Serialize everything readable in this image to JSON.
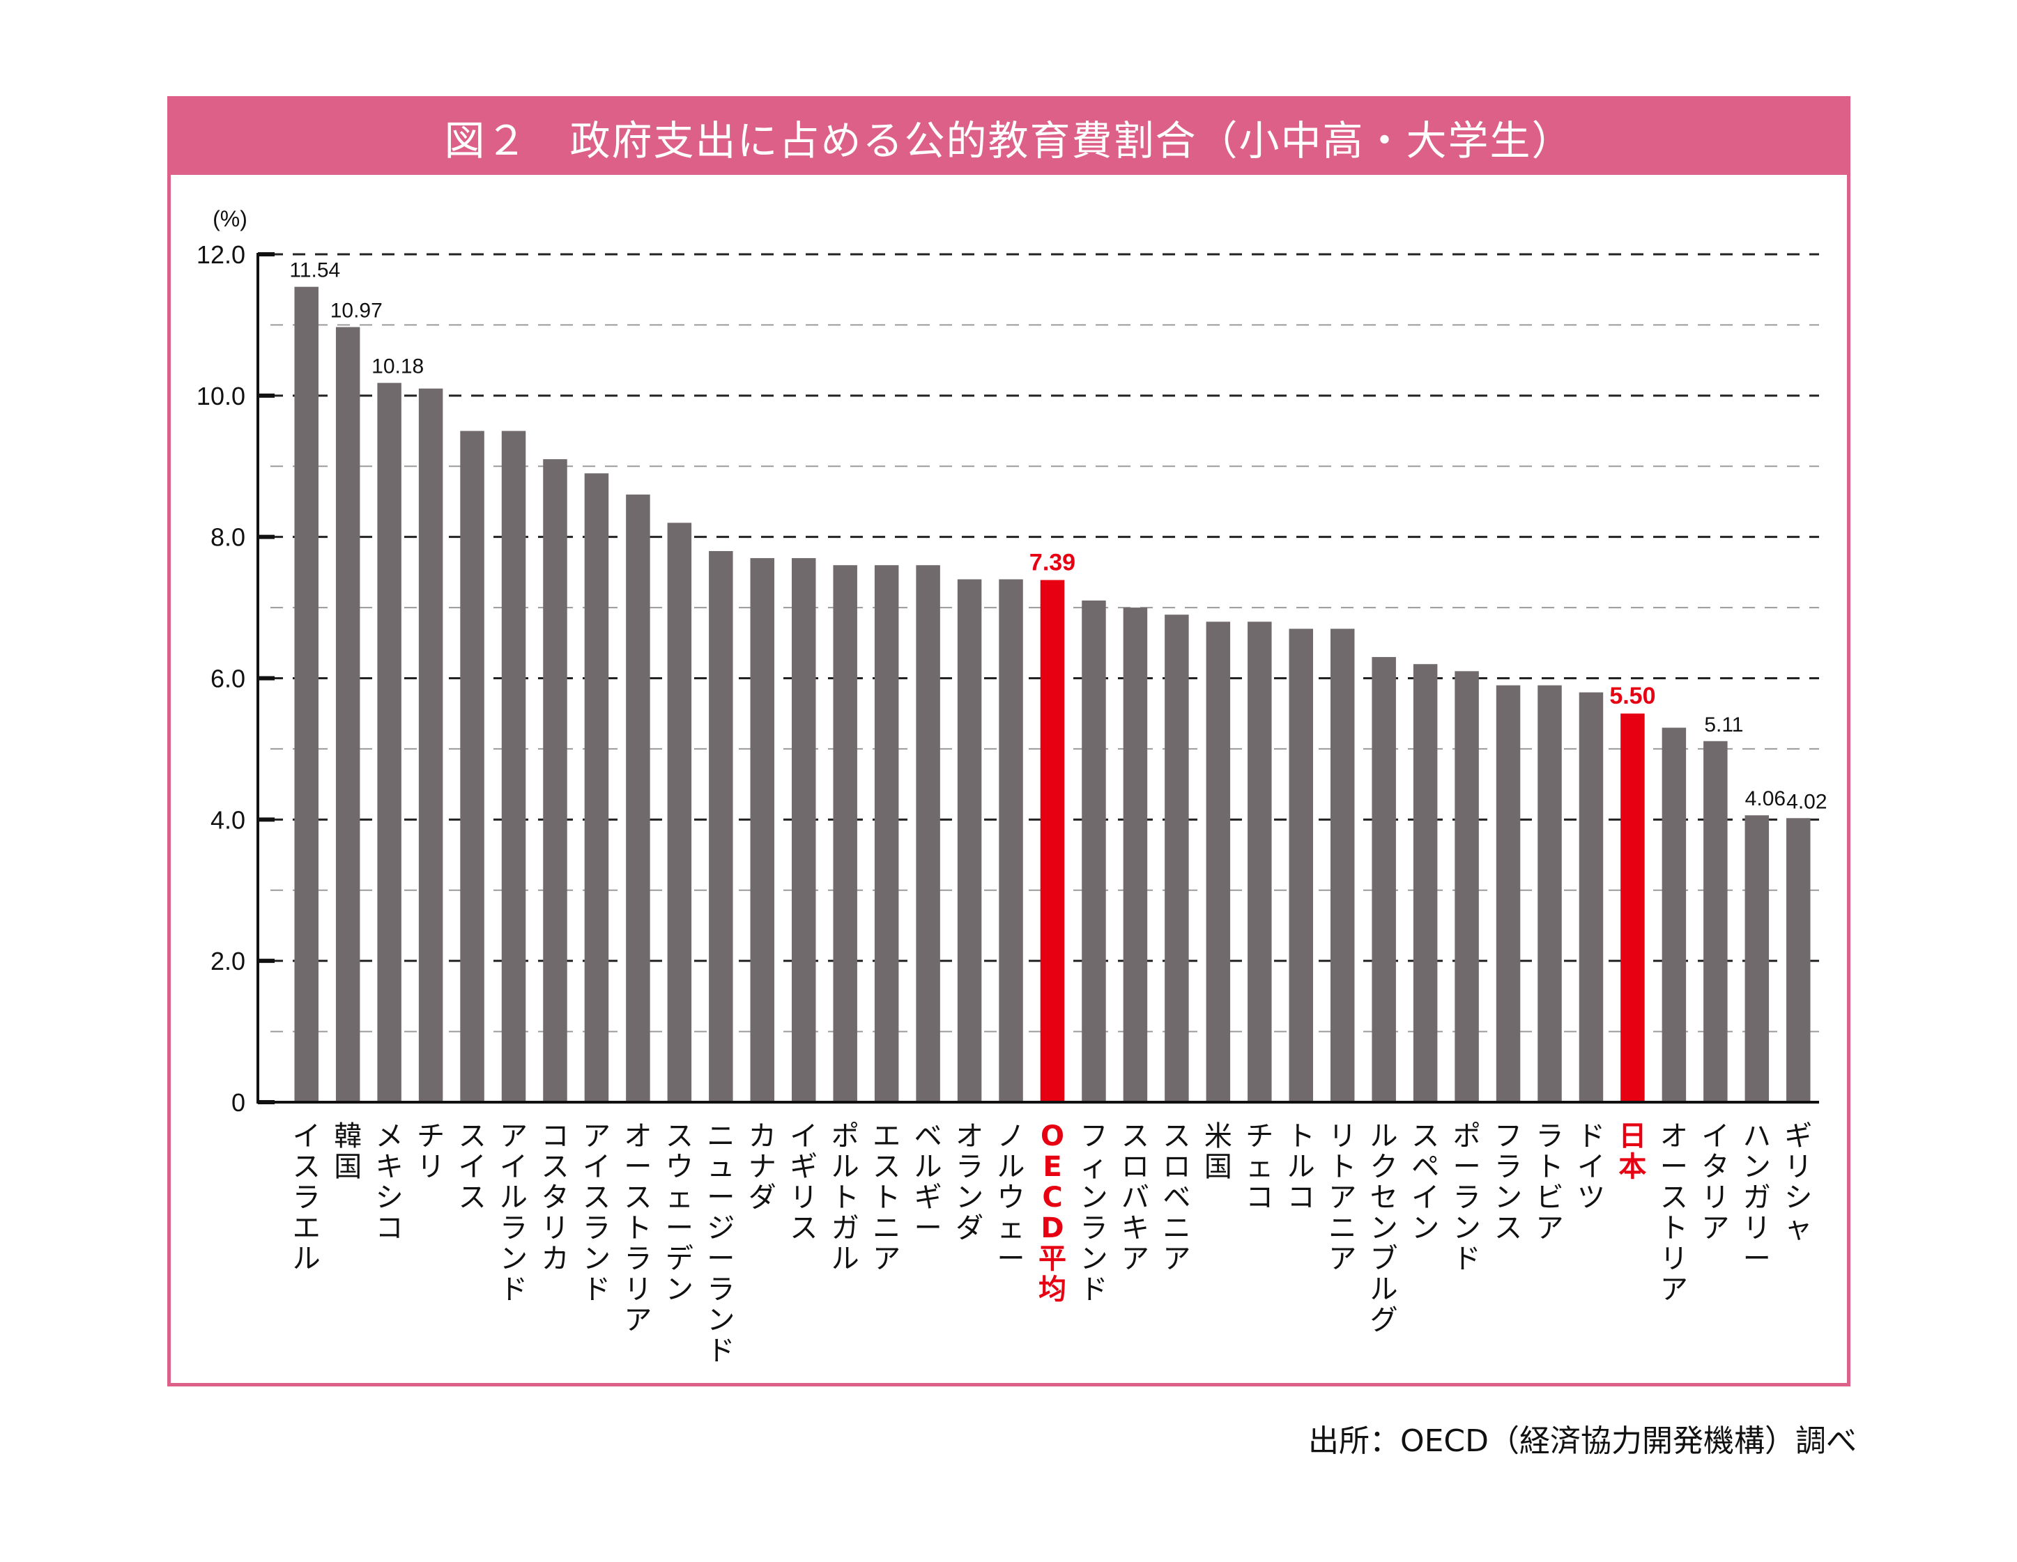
{
  "title": "図２　政府支出に占める公的教育費割合（小中高・大学生）",
  "source": "出所：OECD（経済協力開発機構）調べ",
  "colors": {
    "bar": "#716a6c",
    "highlight": "#e60012",
    "frame": "#dc6088",
    "text": "#111111"
  },
  "chart_data": {
    "type": "bar",
    "title": "図２　政府支出に占める公的教育費割合（小中高・大学生）",
    "ylabel": "(%)",
    "xlabel": "",
    "ylim": [
      0,
      12
    ],
    "yticks": [
      0,
      2,
      4,
      6,
      8,
      10,
      12
    ],
    "ytick_labels": [
      "0",
      "2.0",
      "4.0",
      "6.0",
      "8.0",
      "10.0",
      "12.0"
    ],
    "grid": true,
    "legend": "none",
    "categories": [
      "イスラエル",
      "韓国",
      "メキシコ",
      "チリ",
      "スイス",
      "アイルランド",
      "コスタリカ",
      "アイスランド",
      "オーストラリア",
      "スウェーデン",
      "ニュージーランド",
      "カナダ",
      "イギリス",
      "ポルトガル",
      "エストニア",
      "ベルギー",
      "オランダ",
      "ノルウェー",
      "OECD平均",
      "フィンランド",
      "スロバキア",
      "スロベニア",
      "米国",
      "チェコ",
      "トルコ",
      "リトアニア",
      "ルクセンブルグ",
      "スペイン",
      "ポーランド",
      "フランス",
      "ラトビア",
      "ドイツ",
      "日本",
      "オーストリア",
      "イタリア",
      "ハンガリー",
      "ギリシャ"
    ],
    "values": [
      11.54,
      10.97,
      10.18,
      10.1,
      9.5,
      9.5,
      9.1,
      8.9,
      8.6,
      8.2,
      7.8,
      7.7,
      7.7,
      7.6,
      7.6,
      7.6,
      7.4,
      7.4,
      7.39,
      7.1,
      7.0,
      6.9,
      6.8,
      6.8,
      6.7,
      6.7,
      6.3,
      6.2,
      6.1,
      5.9,
      5.9,
      5.8,
      5.5,
      5.3,
      5.11,
      4.06,
      4.02
    ],
    "highlight": [
      "OECD平均",
      "日本"
    ],
    "data_labels": {
      "イスラエル": "11.54",
      "韓国": "10.97",
      "メキシコ": "10.18",
      "OECD平均": "7.39",
      "日本": "5.50",
      "イタリア": "5.11",
      "ハンガリー": "4.06",
      "ギリシャ": "4.02"
    }
  }
}
